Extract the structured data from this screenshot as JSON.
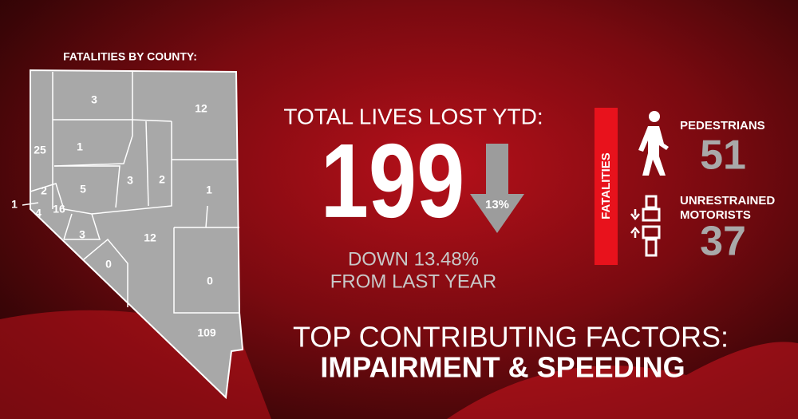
{
  "map": {
    "title": "FATALITIES BY COUNTY:",
    "counties": [
      3,
      12,
      25,
      1,
      2,
      5,
      3,
      2,
      1,
      1,
      4,
      16,
      3,
      12,
      0,
      0,
      109
    ]
  },
  "total": {
    "label": "TOTAL LIVES LOST YTD:",
    "value": 199,
    "change": "13%",
    "subtitle": [
      "DOWN 13.48%",
      "FROM LAST YEAR"
    ]
  },
  "side": {
    "tag": "Fatalities",
    "items": [
      {
        "label": [
          "PEDESTRIANS"
        ],
        "value": 51
      },
      {
        "label": [
          "UNRESTRAINED",
          "MOTORISTS"
        ],
        "value": 37
      }
    ]
  },
  "factors": {
    "title": "TOP CONTRIBUTING FACTORS:",
    "items": "IMPAIRMENT & SPEEDING"
  }
}
